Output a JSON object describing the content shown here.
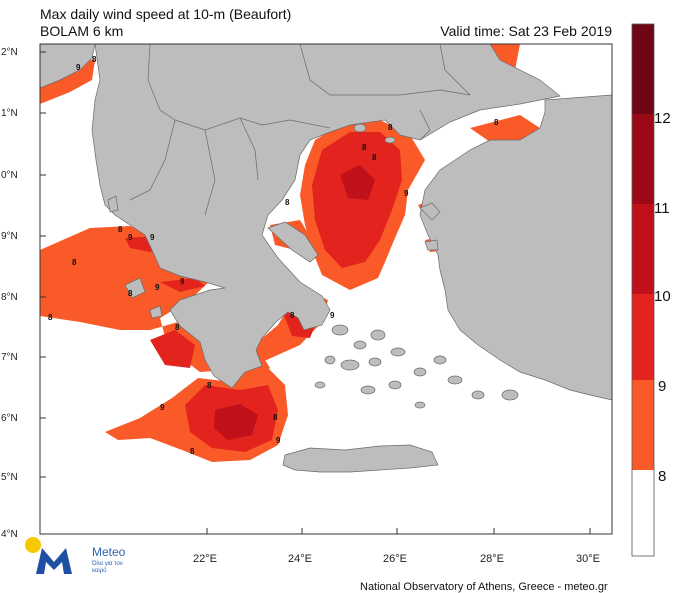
{
  "header": {
    "title_line1": "Max daily wind speed at 10-m (Beaufort)",
    "title_line2": "BOLAM 6 km",
    "valid_time": "Valid time: Sat 23 Feb 2019"
  },
  "axes": {
    "lat_labels": [
      "2°N",
      "1°N",
      "0°N",
      "9°N",
      "8°N",
      "7°N",
      "6°N",
      "5°N",
      "4°N"
    ],
    "lon_labels": [
      "22°E",
      "24°E",
      "26°E",
      "28°E",
      "30°E"
    ]
  },
  "legend": {
    "levels": [
      "8",
      "9",
      "10",
      "11",
      "12"
    ],
    "colors": {
      "below_8": "#ffffff",
      "8_9": "#fa5a28",
      "9_10": "#e3231e",
      "10_11": "#c0101a",
      "11_12": "#9c0a18",
      "12_plus": "#6e0616"
    }
  },
  "map_colors": {
    "land": "#bdbdbd",
    "sea": "#ffffff",
    "border": "#6a6a6a"
  },
  "contour_labels": [
    "9",
    "8",
    "8",
    "9",
    "9",
    "8",
    "9",
    "9",
    "8",
    "8",
    "8",
    "8",
    "9",
    "8",
    "8",
    "9",
    "8",
    "9",
    "8",
    "8",
    "8",
    "9",
    "8",
    "8"
  ],
  "logo": {
    "name": "Meteo",
    "tagline": "Όλα για τον καιρό"
  },
  "credit": "National Observatory of Athens, Greece - meteo.gr"
}
